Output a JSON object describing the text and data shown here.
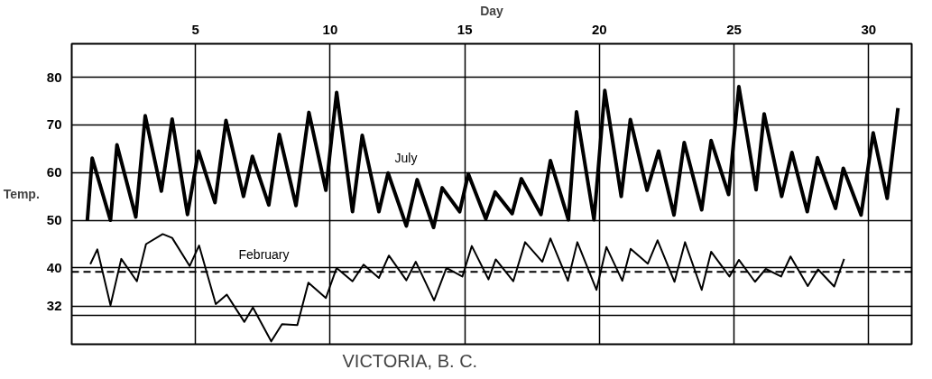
{
  "chart_data": {
    "type": "line",
    "title": "VICTORIA, B. C.",
    "xlabel": "Day",
    "ylabel": "Temp.",
    "series": [
      {
        "name": "July",
        "color": "#000000",
        "x": [
          0.98,
          1.16,
          1.84,
          2.08,
          2.78,
          3.13,
          3.73,
          4.13,
          4.7,
          5.11,
          5.72,
          6.13,
          6.78,
          7.11,
          7.72,
          8.11,
          8.73,
          9.21,
          9.84,
          10.24,
          10.83,
          11.19,
          11.81,
          12.15,
          12.83,
          13.23,
          13.84,
          14.16,
          14.81,
          15.13,
          15.78,
          16.13,
          16.76,
          17.1,
          17.83,
          18.18,
          18.85,
          19.15,
          19.8,
          20.2,
          20.81,
          21.15,
          21.77,
          22.2,
          22.77,
          23.15,
          23.8,
          24.15,
          24.8,
          25.18,
          25.82,
          26.12,
          26.77,
          27.15,
          27.72,
          28.1,
          28.77,
          29.06,
          29.72,
          30.17,
          30.69,
          31.09
        ],
        "values": [
          50,
          63.0,
          50,
          65.8,
          50.7,
          71.9,
          56.1,
          71.2,
          51.2,
          64.5,
          53.7,
          70.9,
          55.0,
          63.4,
          53.2,
          68.0,
          53.1,
          72.6,
          56.3,
          76.8,
          51.8,
          67.8,
          51.8,
          59.9,
          48.8,
          58.5,
          48.5,
          56.8,
          51.8,
          59.7,
          50.3,
          55.9,
          51.4,
          58.7,
          51.2,
          62.5,
          50.1,
          72.7,
          50.1,
          77.2,
          55.0,
          71.1,
          56.3,
          64.5,
          51.1,
          66.3,
          52.2,
          66.7,
          55.4,
          78.0,
          56.4,
          72.3,
          55.0,
          64.2,
          51.8,
          63.1,
          52.5,
          60.9,
          51.1,
          68.3,
          54.6,
          73.5
        ]
      },
      {
        "name": "February",
        "color": "#000000",
        "x": [
          1.09,
          1.35,
          1.84,
          2.24,
          2.82,
          3.16,
          3.78,
          4.13,
          4.78,
          5.13,
          5.75,
          6.16,
          6.81,
          7.13,
          7.81,
          8.21,
          8.78,
          9.19,
          9.84,
          10.24,
          10.83,
          11.24,
          11.81,
          12.18,
          12.83,
          13.18,
          13.86,
          14.32,
          14.91,
          15.26,
          15.88,
          16.15,
          16.8,
          17.24,
          17.88,
          18.18,
          18.83,
          19.18,
          19.89,
          20.26,
          20.85,
          21.16,
          21.8,
          22.16,
          22.79,
          23.18,
          23.8,
          24.15,
          24.83,
          25.18,
          25.78,
          26.18,
          26.75,
          27.1,
          27.74,
          28.12,
          28.72,
          29.09
        ],
        "values": [
          40.8,
          43.9,
          32.2,
          41.9,
          37.2,
          45.0,
          47.1,
          46.3,
          40.4,
          44.7,
          32.4,
          34.4,
          28.7,
          31.7,
          24.6,
          28.2,
          28.0,
          36.9,
          33.7,
          40.0,
          37.2,
          40.7,
          37.9,
          42.6,
          37.4,
          41.3,
          33.2,
          40.0,
          38.2,
          44.6,
          37.6,
          41.8,
          37.2,
          45.4,
          41.3,
          46.2,
          37.3,
          45.4,
          35.4,
          44.4,
          37.3,
          44.0,
          40.9,
          45.8,
          37.1,
          45.4,
          35.4,
          43.4,
          38.2,
          41.7,
          37.1,
          39.8,
          38.2,
          42.4,
          36.2,
          39.7,
          36.1,
          41.9
        ]
      }
    ],
    "xlim": [
      0.4,
      31.6
    ],
    "xticks": [
      5,
      10,
      15,
      20,
      25,
      30
    ],
    "ylim": [
      24,
      87
    ],
    "yticks": [
      80,
      70,
      60,
      50,
      40,
      32,
      {
        "value": 30,
        "label": null
      }
    ],
    "ref_lines": [
      {
        "axis": "y",
        "value": 39.2,
        "line_style": "dashed",
        "color": "#000000"
      }
    ],
    "grid": true,
    "marker": "none",
    "line_style": "solid"
  }
}
